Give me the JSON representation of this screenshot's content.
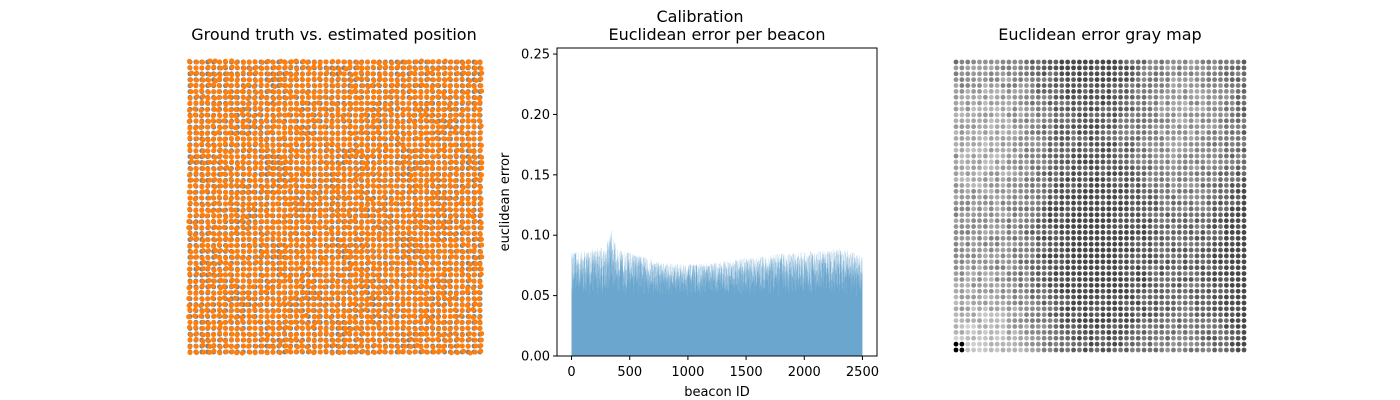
{
  "figure": {
    "suptitle": "Calibration"
  },
  "colors": {
    "ground_truth": "#808080",
    "estimated": "#ff7f0e",
    "bar": "#1f77b4",
    "axis": "#000000"
  },
  "chart_data": [
    {
      "type": "scatter",
      "title": "Ground truth vs. estimated position",
      "axis_visible": false,
      "grid_size": 50,
      "series": [
        {
          "name": "ground truth",
          "color": "#808080",
          "layout": "regular 50 x 50 grid"
        },
        {
          "name": "estimated",
          "color": "#ff7f0e",
          "layout": "grid points with small offsets; grey visible where offset"
        }
      ]
    },
    {
      "type": "bar",
      "title": "Euclidean error per beacon",
      "xlabel": "beacon ID",
      "ylabel": "euclidean error",
      "xlim": [
        -125,
        2625
      ],
      "ylim": [
        0,
        0.255
      ],
      "xticks": [
        0,
        500,
        1000,
        1500,
        2000,
        2500
      ],
      "xtick_labels": [
        "0",
        "500",
        "1000",
        "1500",
        "2000",
        "2500"
      ],
      "yticks": [
        0.0,
        0.05,
        0.1,
        0.15,
        0.2,
        0.25
      ],
      "ytick_labels": [
        "0.00",
        "0.05",
        "0.10",
        "0.15",
        "0.20",
        "0.25"
      ],
      "n_beacons": 2500,
      "error_range": [
        0.045,
        0.104
      ],
      "max_error": {
        "beacon": 340,
        "value": 0.104
      },
      "profile": [
        {
          "beacon": 0,
          "upper": 0.086
        },
        {
          "beacon": 100,
          "upper": 0.087
        },
        {
          "beacon": 200,
          "upper": 0.089
        },
        {
          "beacon": 300,
          "upper": 0.092
        },
        {
          "beacon": 340,
          "upper": 0.104
        },
        {
          "beacon": 400,
          "upper": 0.088
        },
        {
          "beacon": 500,
          "upper": 0.086
        },
        {
          "beacon": 600,
          "upper": 0.083
        },
        {
          "beacon": 700,
          "upper": 0.08
        },
        {
          "beacon": 800,
          "upper": 0.077
        },
        {
          "beacon": 1000,
          "upper": 0.076
        },
        {
          "beacon": 1200,
          "upper": 0.077
        },
        {
          "beacon": 1400,
          "upper": 0.08
        },
        {
          "beacon": 1600,
          "upper": 0.082
        },
        {
          "beacon": 1800,
          "upper": 0.085
        },
        {
          "beacon": 2000,
          "upper": 0.086
        },
        {
          "beacon": 2200,
          "upper": 0.088
        },
        {
          "beacon": 2300,
          "upper": 0.089
        },
        {
          "beacon": 2400,
          "upper": 0.087
        },
        {
          "beacon": 2500,
          "upper": 0.082
        }
      ]
    },
    {
      "type": "heatmap",
      "title": "Euclidean error gray map",
      "axis_visible": false,
      "grid_size": 50,
      "colormap": "gray, darker = larger error",
      "error_range": [
        0.045,
        0.104
      ]
    }
  ]
}
